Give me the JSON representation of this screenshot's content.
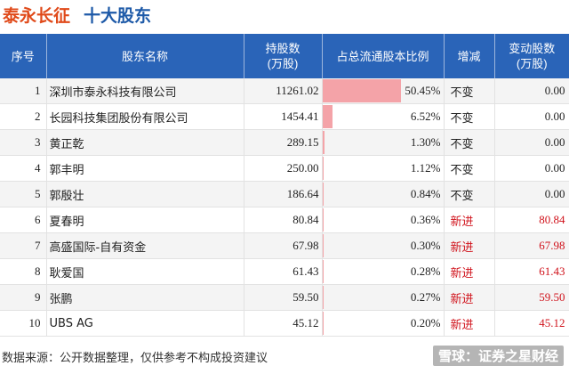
{
  "title": {
    "company": "泰永长征",
    "subtitle": "十大股东"
  },
  "table": {
    "headers": {
      "rank": "序号",
      "name": "股东名称",
      "shares_line1": "持股数",
      "shares_line2": "(万股)",
      "ratio": "占总流通股本比例",
      "change": "增减",
      "delta_line1": "变动股数",
      "delta_line2": "(万股)"
    },
    "rows": [
      {
        "rank": "1",
        "name": "深圳市泰永科技有限公司",
        "shares": "11261.02",
        "ratio": "50.45%",
        "ratio_value": 50.45,
        "change": "不变",
        "delta": "0.00",
        "is_new": false
      },
      {
        "rank": "2",
        "name": "长园科技集团股份有限公司",
        "shares": "1454.41",
        "ratio": "6.52%",
        "ratio_value": 6.52,
        "change": "不变",
        "delta": "0.00",
        "is_new": false
      },
      {
        "rank": "3",
        "name": "黄正乾",
        "shares": "289.15",
        "ratio": "1.30%",
        "ratio_value": 1.3,
        "change": "不变",
        "delta": "0.00",
        "is_new": false
      },
      {
        "rank": "4",
        "name": "郭丰明",
        "shares": "250.00",
        "ratio": "1.12%",
        "ratio_value": 1.12,
        "change": "不变",
        "delta": "0.00",
        "is_new": false
      },
      {
        "rank": "5",
        "name": "郭殷壮",
        "shares": "186.64",
        "ratio": "0.84%",
        "ratio_value": 0.84,
        "change": "不变",
        "delta": "0.00",
        "is_new": false
      },
      {
        "rank": "6",
        "name": "夏春明",
        "shares": "80.84",
        "ratio": "0.36%",
        "ratio_value": 0.36,
        "change": "新进",
        "delta": "80.84",
        "is_new": true
      },
      {
        "rank": "7",
        "name": "高盛国际-自有资金",
        "shares": "67.98",
        "ratio": "0.30%",
        "ratio_value": 0.3,
        "change": "新进",
        "delta": "67.98",
        "is_new": true
      },
      {
        "rank": "8",
        "name": "耿爱国",
        "shares": "61.43",
        "ratio": "0.28%",
        "ratio_value": 0.28,
        "change": "新进",
        "delta": "61.43",
        "is_new": true
      },
      {
        "rank": "9",
        "name": "张鹏",
        "shares": "59.50",
        "ratio": "0.27%",
        "ratio_value": 0.27,
        "change": "新进",
        "delta": "59.50",
        "is_new": true
      },
      {
        "rank": "10",
        "name": "UBS AG",
        "shares": "45.12",
        "ratio": "0.20%",
        "ratio_value": 0.2,
        "change": "新进",
        "delta": "45.12",
        "is_new": true
      }
    ]
  },
  "footer": {
    "source": "数据来源：公开数据整理，仅供参考不构成投资建议",
    "watermark": "雪球：证券之星财经"
  },
  "colors": {
    "title_company": "#e04a1a",
    "title_subtitle": "#1e5aa8",
    "header_bg": "#2a64b8",
    "ratio_bar": "#f4a3a8",
    "new_entry": "#d0121b"
  }
}
